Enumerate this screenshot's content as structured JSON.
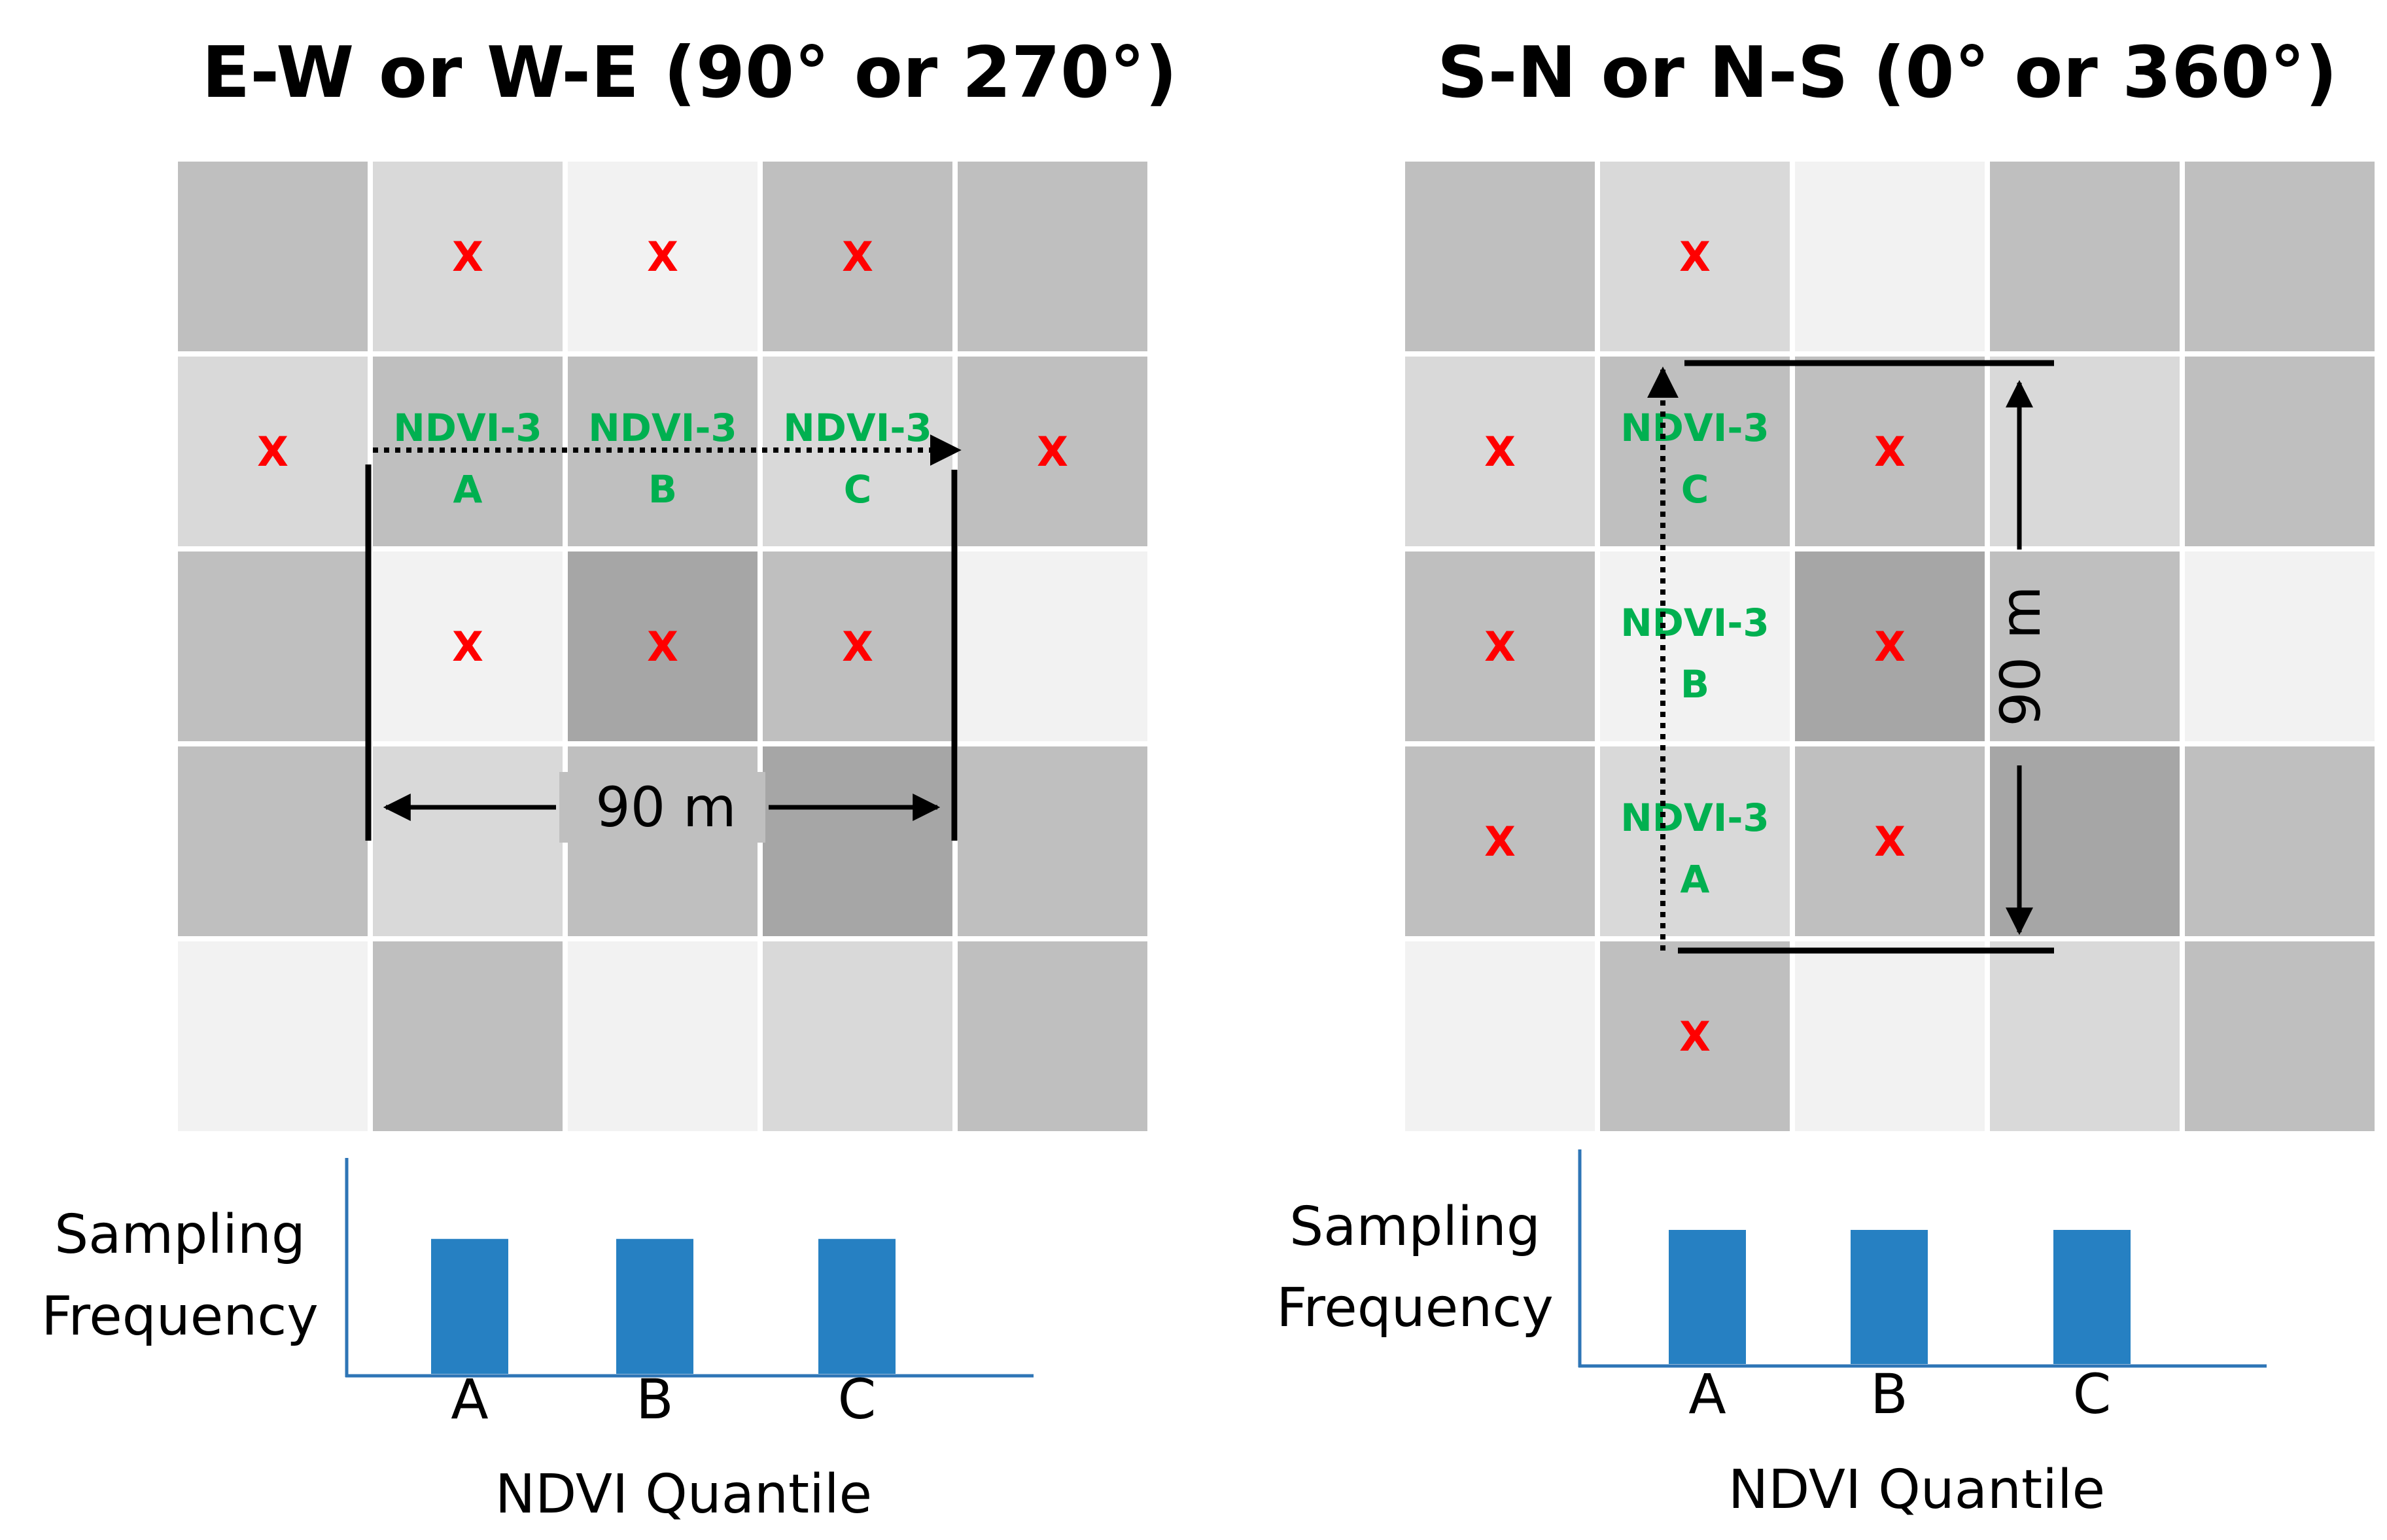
{
  "figure": {
    "panels": [
      {
        "id": "ew",
        "title": "E-W or W-E (90° or 270°)",
        "x_marker": "X",
        "shades": [
          [
            "#bfbfbf",
            "#d9d9d9",
            "#f2f2f2",
            "#bfbfbf",
            "#bfbfbf"
          ],
          [
            "#d9d9d9",
            "#bfbfbf",
            "#bfbfbf",
            "#d9d9d9",
            "#bfbfbf"
          ],
          [
            "#bfbfbf",
            "#f2f2f2",
            "#a6a6a6",
            "#bfbfbf",
            "#f2f2f2"
          ],
          [
            "#bfbfbf",
            "#d9d9d9",
            "#bfbfbf",
            "#a6a6a6",
            "#bfbfbf"
          ],
          [
            "#f2f2f2",
            "#bfbfbf",
            "#f2f2f2",
            "#d9d9d9",
            "#bfbfbf"
          ]
        ],
        "x_cells": [
          [
            0,
            1
          ],
          [
            0,
            2
          ],
          [
            0,
            3
          ],
          [
            1,
            0
          ],
          [
            1,
            4
          ],
          [
            2,
            1
          ],
          [
            2,
            2
          ],
          [
            2,
            3
          ]
        ],
        "sample_cells": [
          {
            "row": 1,
            "col": 1,
            "label": "NDVI-3",
            "letter": "A"
          },
          {
            "row": 1,
            "col": 2,
            "label": "NDVI-3",
            "letter": "B"
          },
          {
            "row": 1,
            "col": 3,
            "label": "NDVI-3",
            "letter": "C"
          }
        ],
        "distance_label": "90 m",
        "chart_data": {
          "type": "bar",
          "categories": [
            "A",
            "B",
            "C"
          ],
          "values": [
            1,
            1,
            1
          ],
          "ylabel": "Sampling Frequency",
          "ylabel_lines": [
            "Sampling",
            "Frequency"
          ],
          "xlabel": "NDVI Quantile",
          "ylim": [
            0,
            1.6
          ],
          "bar_color": "#2680c2",
          "axis_color": "#2e75b6"
        }
      },
      {
        "id": "sn",
        "title": "S-N or N-S (0° or 360°)",
        "x_marker": "X",
        "shades": [
          [
            "#bfbfbf",
            "#d9d9d9",
            "#f2f2f2",
            "#bfbfbf",
            "#bfbfbf"
          ],
          [
            "#d9d9d9",
            "#bfbfbf",
            "#bfbfbf",
            "#d9d9d9",
            "#bfbfbf"
          ],
          [
            "#bfbfbf",
            "#f2f2f2",
            "#a6a6a6",
            "#bfbfbf",
            "#f2f2f2"
          ],
          [
            "#bfbfbf",
            "#d9d9d9",
            "#bfbfbf",
            "#a6a6a6",
            "#bfbfbf"
          ],
          [
            "#f2f2f2",
            "#bfbfbf",
            "#f2f2f2",
            "#d9d9d9",
            "#bfbfbf"
          ]
        ],
        "x_cells": [
          [
            0,
            1
          ],
          [
            1,
            0
          ],
          [
            1,
            2
          ],
          [
            2,
            0
          ],
          [
            2,
            2
          ],
          [
            3,
            0
          ],
          [
            3,
            2
          ],
          [
            4,
            1
          ]
        ],
        "sample_cells": [
          {
            "row": 1,
            "col": 1,
            "label": "NDVI-3",
            "letter": "C"
          },
          {
            "row": 2,
            "col": 1,
            "label": "NDVI-3",
            "letter": "B"
          },
          {
            "row": 3,
            "col": 1,
            "label": "NDVI-3",
            "letter": "A"
          }
        ],
        "distance_label": "90 m",
        "chart_data": {
          "type": "bar",
          "categories": [
            "A",
            "B",
            "C"
          ],
          "values": [
            1,
            1,
            1
          ],
          "ylabel": "Sampling Frequency",
          "ylabel_lines": [
            "Sampling",
            "Frequency"
          ],
          "xlabel": "NDVI Quantile",
          "ylim": [
            0,
            1.6
          ],
          "bar_color": "#2680c2",
          "axis_color": "#2e75b6"
        }
      }
    ]
  }
}
